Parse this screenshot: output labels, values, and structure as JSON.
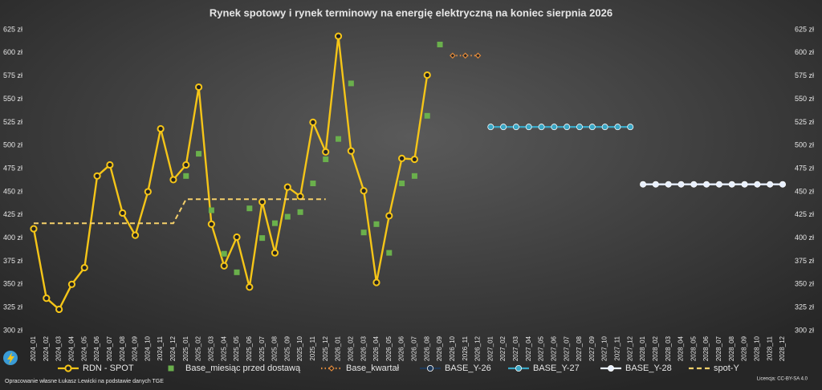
{
  "chart_data": {
    "type": "line",
    "title": "Rynek spotowy  i rynek terminowy  na  energię  elektryczną  na  koniec  sierpnia  2026",
    "source": "Opracowanie własne Łukasz Lewicki na podstawie danych TGE",
    "license": "Licencja: CC-BY-SA 4.0",
    "categories": [
      "2024_01",
      "2024_02",
      "2024_03",
      "2024_04",
      "2024_05",
      "2024_06",
      "2024_07",
      "2024_08",
      "2024_09",
      "2024_10",
      "2024_11",
      "2024_12",
      "2025_01",
      "2025_02",
      "2025_03",
      "2025_04",
      "2025_05",
      "2025_06",
      "2025_07",
      "2025_08",
      "2025_09",
      "2025_10",
      "2025_11",
      "2025_12",
      "2026_01",
      "2026_02",
      "2026_03",
      "2026_04",
      "2026_05",
      "2026_06",
      "2026_07",
      "2026_08",
      "2026_09",
      "2026_10",
      "2026_11",
      "2026_12",
      "2027_01",
      "2027_02",
      "2027_03",
      "2027_04",
      "2027_05",
      "2027_06",
      "2027_07",
      "2027_08",
      "2027_09",
      "2027_10",
      "2027_11",
      "2027_12",
      "2028_01",
      "2028_02",
      "2028_03",
      "2028_04",
      "2028_05",
      "2028_06",
      "2028_07",
      "2028_08",
      "2028_09",
      "2028_10",
      "2028_11",
      "2028_12"
    ],
    "ylim": [
      300,
      625
    ],
    "yticks": [
      {
        "value": 300,
        "label": "300 zł"
      },
      {
        "value": 325,
        "label": "325 zł"
      },
      {
        "value": 350,
        "label": "350 zł"
      },
      {
        "value": 375,
        "label": "375 zł"
      },
      {
        "value": 400,
        "label": "400 zł"
      },
      {
        "value": 425,
        "label": "425 zł"
      },
      {
        "value": 450,
        "label": "450 zł"
      },
      {
        "value": 475,
        "label": "475 zł"
      },
      {
        "value": 500,
        "label": "500 zł"
      },
      {
        "value": 525,
        "label": "525 zł"
      },
      {
        "value": 550,
        "label": "550 zł"
      },
      {
        "value": 575,
        "label": "575 zł"
      },
      {
        "value": 600,
        "label": "600 zł"
      },
      {
        "value": 625,
        "label": "625 zł"
      }
    ],
    "series": [
      {
        "name": "RDN - SPOT",
        "color": "#f5c518",
        "line": "solid",
        "marker": "circle",
        "values": [
          410,
          335,
          323,
          350,
          368,
          467,
          479,
          427,
          403,
          450,
          518,
          463,
          479,
          563,
          415,
          370,
          401,
          347,
          439,
          384,
          455,
          445,
          525,
          493,
          618,
          494,
          451,
          352,
          424,
          486,
          485,
          576,
          null,
          null,
          null,
          null,
          null,
          null,
          null,
          null,
          null,
          null,
          null,
          null,
          null,
          null,
          null,
          null,
          null,
          null,
          null,
          null,
          null,
          null,
          null,
          null,
          null,
          null,
          null,
          null
        ]
      },
      {
        "name": "Base_miesiąc przed dostawą",
        "color": "#6ab04c",
        "line": "none",
        "marker": "square",
        "values": [
          null,
          null,
          null,
          null,
          null,
          null,
          null,
          null,
          null,
          null,
          null,
          null,
          467,
          491,
          430,
          383,
          363,
          432,
          400,
          416,
          423,
          428,
          459,
          485,
          507,
          567,
          406,
          415,
          384,
          459,
          467,
          532,
          609,
          null,
          null,
          null,
          null,
          null,
          null,
          null,
          null,
          null,
          null,
          null,
          null,
          null,
          null,
          null,
          null,
          null,
          null,
          null,
          null,
          null,
          null,
          null,
          null,
          null,
          null,
          null
        ]
      },
      {
        "name": "Base_kwartał",
        "color": "#e08a3c",
        "line": "dotted",
        "marker": "diamond",
        "values": [
          null,
          null,
          null,
          null,
          null,
          null,
          null,
          null,
          null,
          null,
          null,
          null,
          null,
          null,
          null,
          null,
          null,
          null,
          null,
          null,
          null,
          null,
          null,
          null,
          null,
          null,
          null,
          null,
          null,
          null,
          null,
          null,
          null,
          597,
          597,
          597,
          null,
          null,
          null,
          null,
          null,
          null,
          null,
          null,
          null,
          null,
          null,
          null,
          null,
          null,
          null,
          null,
          null,
          null,
          null,
          null,
          null,
          null,
          null,
          null
        ]
      },
      {
        "name": "BASE_Y-26",
        "color": "#1f3a5a",
        "line": "solid",
        "marker": "circle",
        "values": [
          null,
          null,
          null,
          null,
          null,
          null,
          null,
          null,
          null,
          null,
          null,
          null,
          null,
          null,
          null,
          null,
          null,
          null,
          null,
          null,
          null,
          null,
          null,
          null,
          null,
          null,
          null,
          null,
          null,
          null,
          null,
          null,
          null,
          null,
          null,
          null,
          null,
          null,
          null,
          null,
          null,
          null,
          null,
          null,
          null,
          null,
          null,
          null,
          null,
          null,
          null,
          null,
          null,
          null,
          null,
          null,
          null,
          null,
          null,
          null
        ]
      },
      {
        "name": "BASE_Y-27",
        "color": "#3aa6c4",
        "line": "solid",
        "marker": "circle",
        "values": [
          null,
          null,
          null,
          null,
          null,
          null,
          null,
          null,
          null,
          null,
          null,
          null,
          null,
          null,
          null,
          null,
          null,
          null,
          null,
          null,
          null,
          null,
          null,
          null,
          null,
          null,
          null,
          null,
          null,
          null,
          null,
          null,
          null,
          null,
          null,
          null,
          520,
          520,
          520,
          520,
          520,
          520,
          520,
          520,
          520,
          520,
          520,
          520,
          null,
          null,
          null,
          null,
          null,
          null,
          null,
          null,
          null,
          null,
          null,
          null
        ]
      },
      {
        "name": "BASE_Y-28",
        "color": "#e8f0ff",
        "line": "solid",
        "marker": "circle",
        "values": [
          null,
          null,
          null,
          null,
          null,
          null,
          null,
          null,
          null,
          null,
          null,
          null,
          null,
          null,
          null,
          null,
          null,
          null,
          null,
          null,
          null,
          null,
          null,
          null,
          null,
          null,
          null,
          null,
          null,
          null,
          null,
          null,
          null,
          null,
          null,
          null,
          null,
          null,
          null,
          null,
          null,
          null,
          null,
          null,
          null,
          null,
          null,
          null,
          458,
          458,
          458,
          458,
          458,
          458,
          458,
          458,
          458,
          458,
          458,
          458
        ]
      },
      {
        "name": "spot-Y",
        "color": "#f5d06a",
        "line": "dashed",
        "marker": "none",
        "values": [
          416,
          416,
          416,
          416,
          416,
          416,
          416,
          416,
          416,
          416,
          416,
          416,
          442,
          442,
          442,
          442,
          442,
          442,
          442,
          442,
          442,
          442,
          442,
          442,
          null,
          null,
          null,
          null,
          null,
          null,
          null,
          null,
          null,
          null,
          null,
          null,
          null,
          null,
          null,
          null,
          null,
          null,
          null,
          null,
          null,
          null,
          null,
          null,
          null,
          null,
          null,
          null,
          null,
          null,
          null,
          null,
          null,
          null,
          null,
          null
        ]
      }
    ]
  }
}
